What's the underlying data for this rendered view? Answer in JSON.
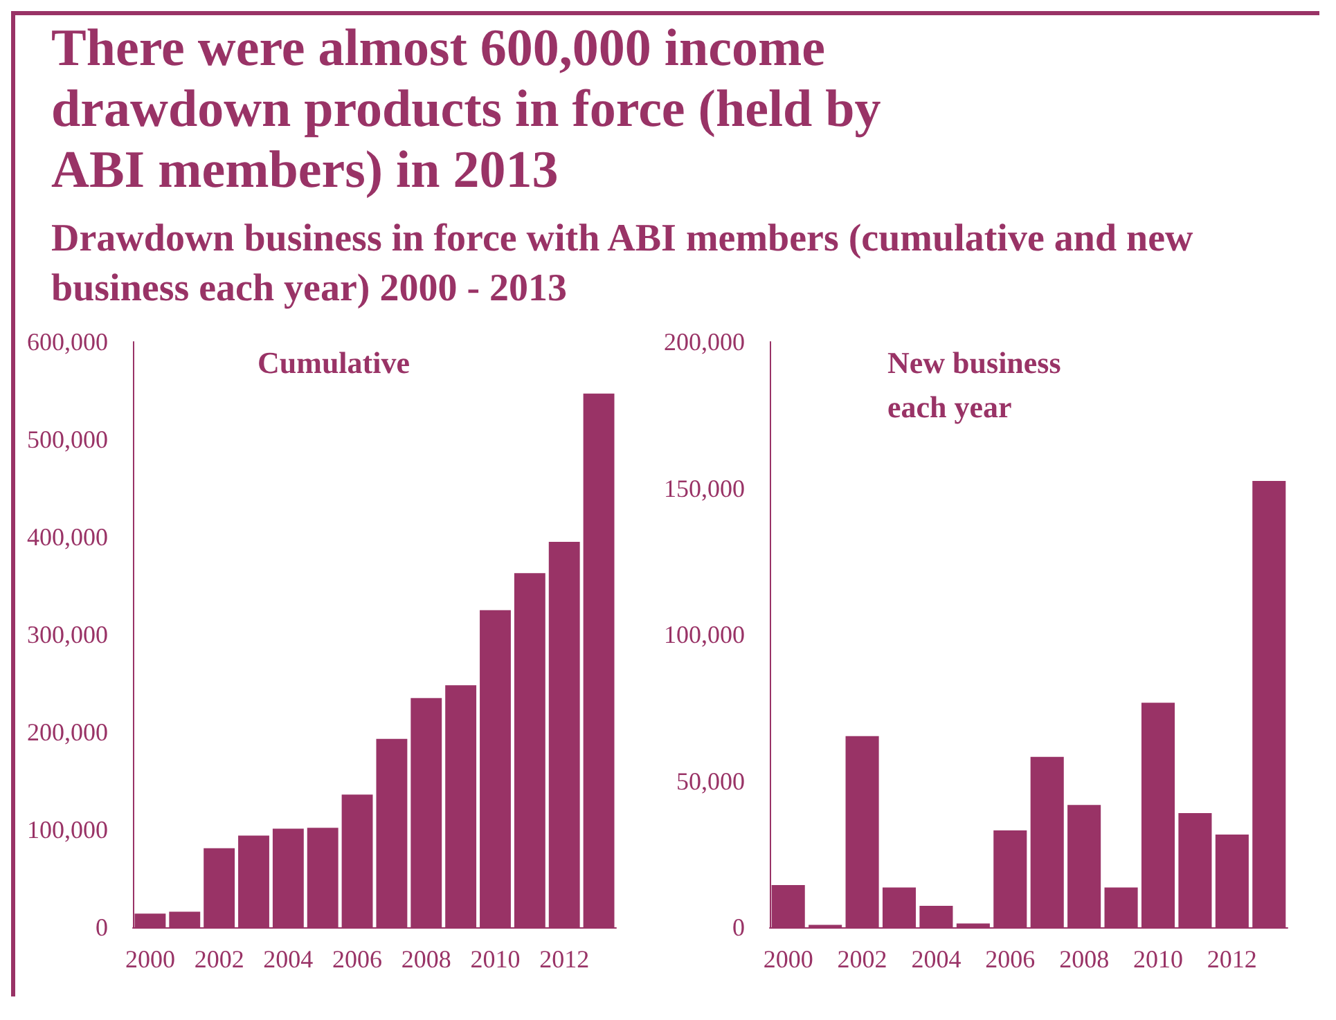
{
  "chart_data": [
    {
      "type": "other",
      "title": "There were almost 600,000 income drawdown products in force (held by ABI members) in 2013",
      "subtitle": "Drawdown business in force with ABI members (cumulative and new business each year) 2000 - 2013"
    },
    {
      "type": "bar",
      "title": "Cumulative",
      "categories": [
        "2000",
        null,
        "2002",
        null,
        "2004",
        null,
        "2006",
        null,
        "2008",
        null,
        "2010",
        null,
        "2012",
        null
      ],
      "values": [
        14000,
        16000,
        81000,
        94000,
        101000,
        102000,
        136000,
        193000,
        235000,
        248000,
        325000,
        363000,
        395000,
        547000
      ],
      "color": "#993366",
      "ylim": [
        0,
        600000
      ],
      "yticks": [
        {
          "value": 0,
          "label": "0"
        },
        {
          "value": 100000,
          "label": "100,000"
        },
        {
          "value": 200000,
          "label": "200,000"
        },
        {
          "value": 300000,
          "label": "300,000"
        },
        {
          "value": 400000,
          "label": "400,000"
        },
        {
          "value": 500000,
          "label": "500,000"
        },
        {
          "value": 600000,
          "label": "600,000"
        }
      ],
      "grid": false
    },
    {
      "type": "bar",
      "title": "New business each year",
      "categories": [
        "2000",
        null,
        "2002",
        null,
        "2004",
        null,
        "2006",
        null,
        "2008",
        null,
        "2010",
        null,
        "2012",
        null
      ],
      "values": [
        14400,
        800,
        65300,
        13600,
        7300,
        1300,
        33100,
        58200,
        41800,
        13600,
        76700,
        39000,
        31700,
        152500
      ],
      "color": "#993366",
      "ylim": [
        0,
        200000
      ],
      "yticks": [
        {
          "value": 0,
          "label": "0"
        },
        {
          "value": 50000,
          "label": "50,000"
        },
        {
          "value": 100000,
          "label": "100,000"
        },
        {
          "value": 150000,
          "label": "150,000"
        },
        {
          "value": 200000,
          "label": "200,000"
        }
      ],
      "grid": false
    }
  ]
}
